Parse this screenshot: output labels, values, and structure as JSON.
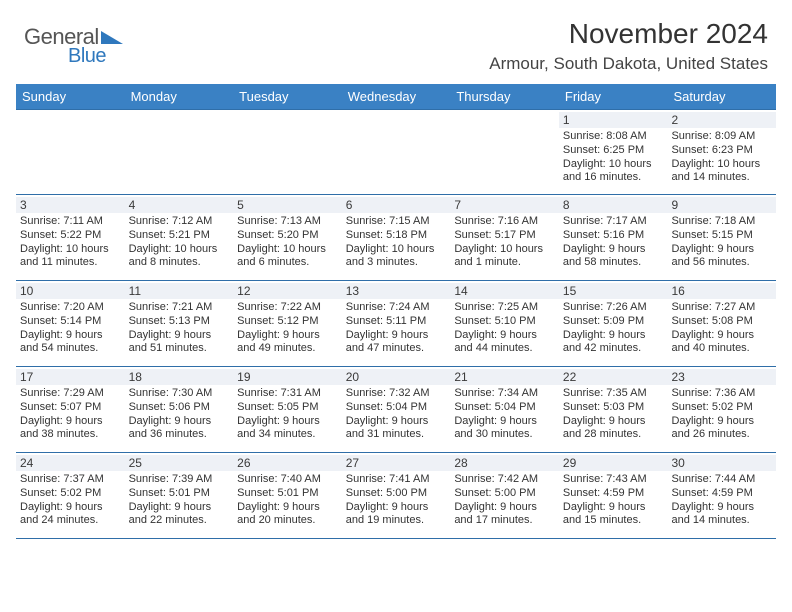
{
  "logo": {
    "word1": "General",
    "word2": "Blue"
  },
  "title": "November 2024",
  "location": "Armour, South Dakota, United States",
  "colors": {
    "header_bg": "#3a81c4",
    "row_border": "#2f6ea8",
    "daynum_bg": "#eef1f6",
    "logo_blue": "#2f78bd"
  },
  "days_of_week": [
    "Sunday",
    "Monday",
    "Tuesday",
    "Wednesday",
    "Thursday",
    "Friday",
    "Saturday"
  ],
  "weeks": [
    [
      {
        "n": "",
        "sr": "",
        "ss": "",
        "dl": ""
      },
      {
        "n": "",
        "sr": "",
        "ss": "",
        "dl": ""
      },
      {
        "n": "",
        "sr": "",
        "ss": "",
        "dl": ""
      },
      {
        "n": "",
        "sr": "",
        "ss": "",
        "dl": ""
      },
      {
        "n": "",
        "sr": "",
        "ss": "",
        "dl": ""
      },
      {
        "n": "1",
        "sr": "Sunrise: 8:08 AM",
        "ss": "Sunset: 6:25 PM",
        "dl": "Daylight: 10 hours and 16 minutes."
      },
      {
        "n": "2",
        "sr": "Sunrise: 8:09 AM",
        "ss": "Sunset: 6:23 PM",
        "dl": "Daylight: 10 hours and 14 minutes."
      }
    ],
    [
      {
        "n": "3",
        "sr": "Sunrise: 7:11 AM",
        "ss": "Sunset: 5:22 PM",
        "dl": "Daylight: 10 hours and 11 minutes."
      },
      {
        "n": "4",
        "sr": "Sunrise: 7:12 AM",
        "ss": "Sunset: 5:21 PM",
        "dl": "Daylight: 10 hours and 8 minutes."
      },
      {
        "n": "5",
        "sr": "Sunrise: 7:13 AM",
        "ss": "Sunset: 5:20 PM",
        "dl": "Daylight: 10 hours and 6 minutes."
      },
      {
        "n": "6",
        "sr": "Sunrise: 7:15 AM",
        "ss": "Sunset: 5:18 PM",
        "dl": "Daylight: 10 hours and 3 minutes."
      },
      {
        "n": "7",
        "sr": "Sunrise: 7:16 AM",
        "ss": "Sunset: 5:17 PM",
        "dl": "Daylight: 10 hours and 1 minute."
      },
      {
        "n": "8",
        "sr": "Sunrise: 7:17 AM",
        "ss": "Sunset: 5:16 PM",
        "dl": "Daylight: 9 hours and 58 minutes."
      },
      {
        "n": "9",
        "sr": "Sunrise: 7:18 AM",
        "ss": "Sunset: 5:15 PM",
        "dl": "Daylight: 9 hours and 56 minutes."
      }
    ],
    [
      {
        "n": "10",
        "sr": "Sunrise: 7:20 AM",
        "ss": "Sunset: 5:14 PM",
        "dl": "Daylight: 9 hours and 54 minutes."
      },
      {
        "n": "11",
        "sr": "Sunrise: 7:21 AM",
        "ss": "Sunset: 5:13 PM",
        "dl": "Daylight: 9 hours and 51 minutes."
      },
      {
        "n": "12",
        "sr": "Sunrise: 7:22 AM",
        "ss": "Sunset: 5:12 PM",
        "dl": "Daylight: 9 hours and 49 minutes."
      },
      {
        "n": "13",
        "sr": "Sunrise: 7:24 AM",
        "ss": "Sunset: 5:11 PM",
        "dl": "Daylight: 9 hours and 47 minutes."
      },
      {
        "n": "14",
        "sr": "Sunrise: 7:25 AM",
        "ss": "Sunset: 5:10 PM",
        "dl": "Daylight: 9 hours and 44 minutes."
      },
      {
        "n": "15",
        "sr": "Sunrise: 7:26 AM",
        "ss": "Sunset: 5:09 PM",
        "dl": "Daylight: 9 hours and 42 minutes."
      },
      {
        "n": "16",
        "sr": "Sunrise: 7:27 AM",
        "ss": "Sunset: 5:08 PM",
        "dl": "Daylight: 9 hours and 40 minutes."
      }
    ],
    [
      {
        "n": "17",
        "sr": "Sunrise: 7:29 AM",
        "ss": "Sunset: 5:07 PM",
        "dl": "Daylight: 9 hours and 38 minutes."
      },
      {
        "n": "18",
        "sr": "Sunrise: 7:30 AM",
        "ss": "Sunset: 5:06 PM",
        "dl": "Daylight: 9 hours and 36 minutes."
      },
      {
        "n": "19",
        "sr": "Sunrise: 7:31 AM",
        "ss": "Sunset: 5:05 PM",
        "dl": "Daylight: 9 hours and 34 minutes."
      },
      {
        "n": "20",
        "sr": "Sunrise: 7:32 AM",
        "ss": "Sunset: 5:04 PM",
        "dl": "Daylight: 9 hours and 31 minutes."
      },
      {
        "n": "21",
        "sr": "Sunrise: 7:34 AM",
        "ss": "Sunset: 5:04 PM",
        "dl": "Daylight: 9 hours and 30 minutes."
      },
      {
        "n": "22",
        "sr": "Sunrise: 7:35 AM",
        "ss": "Sunset: 5:03 PM",
        "dl": "Daylight: 9 hours and 28 minutes."
      },
      {
        "n": "23",
        "sr": "Sunrise: 7:36 AM",
        "ss": "Sunset: 5:02 PM",
        "dl": "Daylight: 9 hours and 26 minutes."
      }
    ],
    [
      {
        "n": "24",
        "sr": "Sunrise: 7:37 AM",
        "ss": "Sunset: 5:02 PM",
        "dl": "Daylight: 9 hours and 24 minutes."
      },
      {
        "n": "25",
        "sr": "Sunrise: 7:39 AM",
        "ss": "Sunset: 5:01 PM",
        "dl": "Daylight: 9 hours and 22 minutes."
      },
      {
        "n": "26",
        "sr": "Sunrise: 7:40 AM",
        "ss": "Sunset: 5:01 PM",
        "dl": "Daylight: 9 hours and 20 minutes."
      },
      {
        "n": "27",
        "sr": "Sunrise: 7:41 AM",
        "ss": "Sunset: 5:00 PM",
        "dl": "Daylight: 9 hours and 19 minutes."
      },
      {
        "n": "28",
        "sr": "Sunrise: 7:42 AM",
        "ss": "Sunset: 5:00 PM",
        "dl": "Daylight: 9 hours and 17 minutes."
      },
      {
        "n": "29",
        "sr": "Sunrise: 7:43 AM",
        "ss": "Sunset: 4:59 PM",
        "dl": "Daylight: 9 hours and 15 minutes."
      },
      {
        "n": "30",
        "sr": "Sunrise: 7:44 AM",
        "ss": "Sunset: 4:59 PM",
        "dl": "Daylight: 9 hours and 14 minutes."
      }
    ]
  ]
}
